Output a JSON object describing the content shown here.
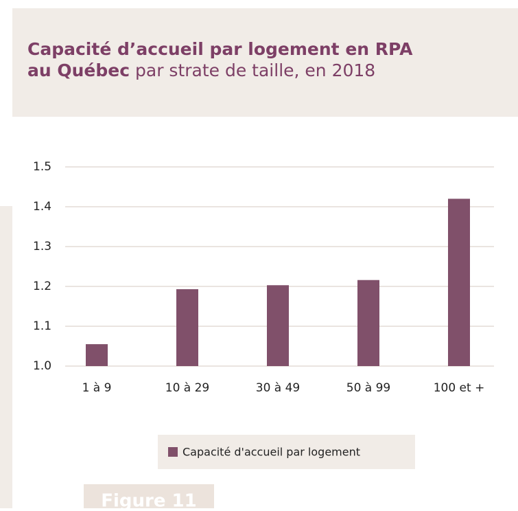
{
  "chart_data": {
    "type": "bar",
    "title": "Capacité d’accueil par logement en RPA",
    "title_bold_2": "au Québec",
    "subtitle": "par strate de taille, en 2018",
    "categories": [
      "1 à 9",
      "10 à 29",
      "30 à 49",
      "50 à 99",
      "100 et +"
    ],
    "series": [
      {
        "name": "Capacité d'accueil par logement",
        "color": "#80506a",
        "values": [
          1.055,
          1.193,
          1.203,
          1.216,
          1.42
        ]
      }
    ],
    "ylim": [
      1,
      1.5
    ],
    "yticks": [
      {
        "value": 1,
        "label": "1.0"
      },
      1.1,
      1.2,
      1.3,
      1.4,
      1.5
    ],
    "grid": true,
    "legend": "bottom"
  },
  "figure_label": "Figure 11"
}
